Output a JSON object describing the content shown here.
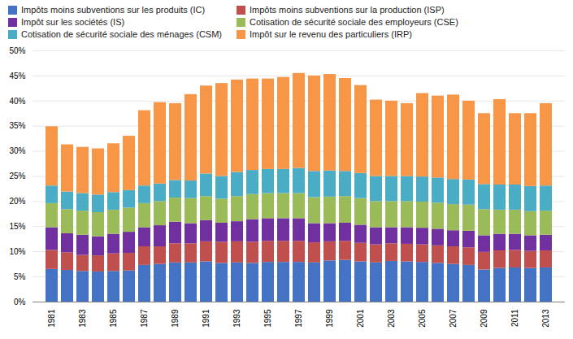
{
  "chart_data": {
    "type": "bar",
    "stacked": true,
    "categories": [
      "1981",
      null,
      "1983",
      null,
      "1985",
      null,
      "1987",
      null,
      "1989",
      null,
      "1991",
      null,
      "1993",
      null,
      "1995",
      null,
      "1997",
      null,
      "1999",
      null,
      "2001",
      null,
      "2003",
      null,
      "2005",
      null,
      "2007",
      null,
      "2009",
      null,
      "2011",
      null,
      "2013"
    ],
    "series": [
      {
        "name": "Impôts moins subventions sur les produits (IC)",
        "color": "#4472c4",
        "values": [
          6.5,
          6.3,
          6.1,
          6.0,
          6.1,
          6.2,
          7.3,
          7.5,
          7.8,
          7.8,
          8.0,
          7.7,
          7.8,
          7.7,
          7.9,
          7.9,
          7.9,
          7.8,
          8.2,
          8.3,
          8.0,
          7.8,
          8.1,
          8.0,
          7.9,
          7.7,
          7.5,
          7.3,
          6.4,
          6.7,
          6.8,
          6.7,
          6.8
        ]
      },
      {
        "name": "Impôts moins subventions sur la production (ISP)",
        "color": "#c0504d",
        "values": [
          3.8,
          3.5,
          3.2,
          3.2,
          3.5,
          3.5,
          3.7,
          3.5,
          3.8,
          3.8,
          4.0,
          4.2,
          4.2,
          4.2,
          4.2,
          4.2,
          4.2,
          4.0,
          3.8,
          3.8,
          3.7,
          3.6,
          3.5,
          3.5,
          3.5,
          3.5,
          3.5,
          3.5,
          3.5,
          3.5,
          3.5,
          3.4,
          3.4
        ]
      },
      {
        "name": "Impôt sur les sociétés (IS)",
        "color": "#7030a0",
        "values": [
          4.5,
          3.8,
          4.0,
          3.8,
          3.9,
          4.2,
          3.8,
          4.2,
          4.3,
          4.0,
          4.2,
          3.8,
          4.0,
          4.5,
          4.5,
          4.5,
          4.5,
          3.8,
          3.6,
          3.6,
          3.6,
          3.4,
          3.2,
          3.3,
          3.3,
          3.3,
          3.2,
          3.3,
          3.3,
          3.3,
          3.2,
          3.1,
          3.1
        ]
      },
      {
        "name": "Cotisation de sécurité sociale des employeurs (CSE)",
        "color": "#9bbb59",
        "values": [
          4.8,
          4.8,
          4.8,
          4.8,
          4.8,
          4.8,
          4.8,
          4.8,
          4.8,
          5.0,
          4.8,
          4.8,
          5.0,
          5.0,
          5.0,
          5.0,
          5.0,
          5.2,
          5.3,
          5.3,
          5.3,
          5.2,
          5.2,
          5.2,
          5.2,
          5.2,
          5.2,
          5.2,
          5.2,
          4.8,
          4.8,
          4.8,
          4.8
        ]
      },
      {
        "name": "Cotisation de sécurité sociale des ménages (CSM)",
        "color": "#4bacc6",
        "values": [
          3.5,
          3.5,
          3.5,
          3.5,
          3.5,
          3.5,
          3.5,
          3.5,
          3.5,
          3.5,
          4.5,
          4.5,
          4.8,
          4.8,
          4.8,
          4.8,
          5.0,
          5.2,
          5.2,
          5.0,
          5.0,
          5.0,
          5.0,
          5.0,
          5.0,
          5.0,
          5.0,
          5.0,
          5.0,
          5.0,
          5.0,
          5.0,
          5.0
        ]
      },
      {
        "name": "Impôt sur le revenu des particuliers (IRP)",
        "color": "#f79646",
        "values": [
          11.8,
          9.4,
          9.2,
          9.2,
          9.7,
          10.8,
          15.0,
          16.2,
          15.3,
          17.2,
          17.5,
          18.5,
          18.4,
          18.2,
          18.0,
          18.3,
          18.9,
          19.0,
          19.2,
          18.5,
          17.5,
          15.2,
          15.0,
          14.5,
          16.6,
          16.3,
          16.8,
          15.7,
          14.1,
          17.0,
          14.2,
          14.5,
          16.4
        ]
      }
    ],
    "ylim": [
      0,
      50
    ],
    "yticks": [
      {
        "value": 0,
        "label": "0%"
      },
      {
        "value": 5,
        "label": "5%"
      },
      {
        "value": 10,
        "label": "10%"
      },
      {
        "value": 15,
        "label": "15%"
      },
      {
        "value": 20,
        "label": "20%"
      },
      {
        "value": 25,
        "label": "25%"
      },
      {
        "value": 30,
        "label": "30%"
      },
      {
        "value": 35,
        "label": "35%"
      },
      {
        "value": 40,
        "label": "40%"
      },
      {
        "value": 45,
        "label": "45%"
      },
      {
        "value": 50,
        "label": "50%"
      }
    ],
    "grid": true,
    "legend": "upper left"
  }
}
